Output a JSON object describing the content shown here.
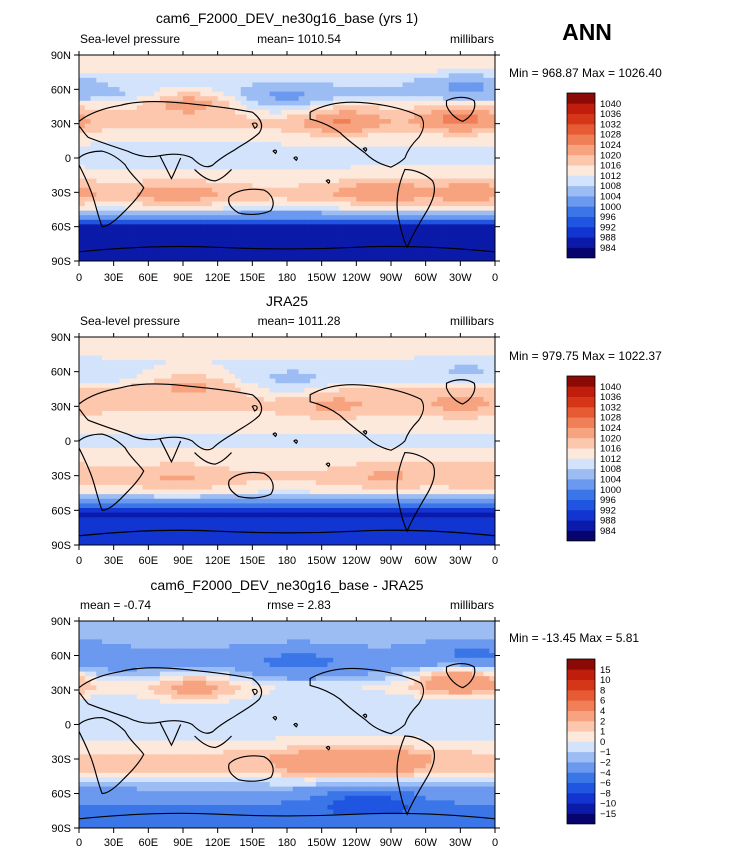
{
  "season": "ANN",
  "colors": {
    "frame": "#000000",
    "text": "#000000"
  },
  "chart_data": [
    {
      "type": "contour-map",
      "title": "cam6_F2000_DEV_ne30g16_base (yrs 1)",
      "left_label": "Sea-level pressure",
      "center_label": "mean= 1010.54",
      "right_label": "millibars",
      "minmax": "Min = 968.87  Max = 1026.40",
      "xlim": [
        0,
        360
      ],
      "ylim": [
        -90,
        90
      ],
      "x_ticks": [
        "0",
        "30E",
        "60E",
        "90E",
        "120E",
        "150E",
        "180",
        "150W",
        "120W",
        "90W",
        "60W",
        "30W",
        "0"
      ],
      "y_ticks": [
        "90N",
        "60N",
        "30N",
        "0",
        "30S",
        "60S",
        "90S"
      ],
      "levels": [
        984,
        988,
        992,
        996,
        1000,
        1004,
        1008,
        1012,
        1016,
        1020,
        1024,
        1028,
        1032,
        1036,
        1040
      ],
      "level_labels": [
        "984",
        "988",
        "992",
        "996",
        "1000",
        "1004",
        "1008",
        "1012",
        "1016",
        "1020",
        "1024",
        "1028",
        "1032",
        "1036",
        "1040"
      ],
      "colorbar_colors": [
        "#08046e",
        "#0b1aa8",
        "#1234d0",
        "#1f55e0",
        "#3a76e8",
        "#6a99ef",
        "#9cbcf4",
        "#d2e3fb",
        "#fde8dc",
        "#fcc7ad",
        "#f7a37f",
        "#f07f58",
        "#e65a34",
        "#d63618",
        "#c01d0c",
        "#8c0a05"
      ],
      "pressure_field": {
        "mean": 1010.54,
        "belts": [
          {
            "lat": -90,
            "value": 985
          },
          {
            "lat": -75,
            "value": 988
          },
          {
            "lat": -62,
            "value": 985
          },
          {
            "lat": -50,
            "value": 1002
          },
          {
            "lat": -42,
            "value": 1012
          },
          {
            "lat": -32,
            "value": 1018
          },
          {
            "lat": -15,
            "value": 1013
          },
          {
            "lat": 0,
            "value": 1010
          },
          {
            "lat": 15,
            "value": 1012
          },
          {
            "lat": 32,
            "value": 1017
          },
          {
            "lat": 45,
            "value": 1014
          },
          {
            "lat": 55,
            "value": 1007
          },
          {
            "lat": 65,
            "value": 1009
          },
          {
            "lat": 80,
            "value": 1015
          },
          {
            "lat": 90,
            "value": 1013
          }
        ],
        "cells": [
          {
            "lon": 225,
            "lat": 32,
            "value": 1026
          },
          {
            "lon": 330,
            "lat": 34,
            "value": 1027
          },
          {
            "lon": 260,
            "lat": -30,
            "value": 1024
          },
          {
            "lon": 340,
            "lat": -30,
            "value": 1023
          },
          {
            "lon": 85,
            "lat": -32,
            "value": 1023
          },
          {
            "lon": 180,
            "lat": 52,
            "value": 1002
          },
          {
            "lon": 335,
            "lat": 62,
            "value": 1002
          },
          {
            "lon": 95,
            "lat": 48,
            "value": 1024
          }
        ]
      }
    },
    {
      "type": "contour-map",
      "title": "JRA25",
      "left_label": "Sea-level pressure",
      "center_label": "mean= 1011.28",
      "right_label": "millibars",
      "minmax": "Min = 979.75  Max = 1022.37",
      "xlim": [
        0,
        360
      ],
      "ylim": [
        -90,
        90
      ],
      "x_ticks": [
        "0",
        "30E",
        "60E",
        "90E",
        "120E",
        "150E",
        "180",
        "150W",
        "120W",
        "90W",
        "60W",
        "30W",
        "0"
      ],
      "y_ticks": [
        "90N",
        "60N",
        "30N",
        "0",
        "30S",
        "60S",
        "90S"
      ],
      "levels": [
        984,
        988,
        992,
        996,
        1000,
        1004,
        1008,
        1012,
        1016,
        1020,
        1024,
        1028,
        1032,
        1036,
        1040
      ],
      "level_labels": [
        "984",
        "988",
        "992",
        "996",
        "1000",
        "1004",
        "1008",
        "1012",
        "1016",
        "1020",
        "1024",
        "1028",
        "1032",
        "1036",
        "1040"
      ],
      "colorbar_colors": [
        "#08046e",
        "#0b1aa8",
        "#1234d0",
        "#1f55e0",
        "#3a76e8",
        "#6a99ef",
        "#9cbcf4",
        "#d2e3fb",
        "#fde8dc",
        "#fcc7ad",
        "#f7a37f",
        "#f07f58",
        "#e65a34",
        "#d63618",
        "#c01d0c",
        "#8c0a05"
      ],
      "pressure_field": {
        "mean": 1011.28,
        "belts": [
          {
            "lat": -90,
            "value": 990
          },
          {
            "lat": -75,
            "value": 992
          },
          {
            "lat": -63,
            "value": 986
          },
          {
            "lat": -52,
            "value": 1002
          },
          {
            "lat": -42,
            "value": 1013
          },
          {
            "lat": -32,
            "value": 1017
          },
          {
            "lat": -15,
            "value": 1013
          },
          {
            "lat": 0,
            "value": 1011
          },
          {
            "lat": 15,
            "value": 1013
          },
          {
            "lat": 32,
            "value": 1017
          },
          {
            "lat": 45,
            "value": 1016
          },
          {
            "lat": 55,
            "value": 1010
          },
          {
            "lat": 65,
            "value": 1011
          },
          {
            "lat": 80,
            "value": 1015
          },
          {
            "lat": 90,
            "value": 1013
          }
        ],
        "cells": [
          {
            "lon": 220,
            "lat": 32,
            "value": 1022
          },
          {
            "lon": 330,
            "lat": 33,
            "value": 1022
          },
          {
            "lon": 265,
            "lat": -30,
            "value": 1021
          },
          {
            "lon": 345,
            "lat": -30,
            "value": 1020
          },
          {
            "lon": 85,
            "lat": -32,
            "value": 1021
          },
          {
            "lon": 185,
            "lat": 52,
            "value": 1006
          },
          {
            "lon": 335,
            "lat": 62,
            "value": 1007
          },
          {
            "lon": 95,
            "lat": 48,
            "value": 1022
          }
        ]
      }
    },
    {
      "type": "contour-map",
      "title": "cam6_F2000_DEV_ne30g16_base - JRA25",
      "left_label": "mean =   -0.74",
      "center_label": "rmse =    2.83",
      "right_label": "millibars",
      "minmax": "Min = -13.45  Max =    5.81",
      "xlim": [
        0,
        360
      ],
      "ylim": [
        -90,
        90
      ],
      "x_ticks": [
        "0",
        "30E",
        "60E",
        "90E",
        "120E",
        "150E",
        "180",
        "150W",
        "120W",
        "90W",
        "60W",
        "30W",
        "0"
      ],
      "y_ticks": [
        "90N",
        "60N",
        "30N",
        "0",
        "30S",
        "60S",
        "90S"
      ],
      "levels": [
        -15,
        -10,
        -8,
        -6,
        -4,
        -2,
        -1,
        0,
        1,
        2,
        4,
        6,
        8,
        10,
        15
      ],
      "level_labels": [
        "-15",
        "-10",
        "-8",
        "-6",
        "-4",
        "-2",
        "-1",
        "0",
        "1",
        "2",
        "4",
        "6",
        "8",
        "10",
        "15"
      ],
      "colorbar_colors": [
        "#08046e",
        "#0b1aa8",
        "#1234d0",
        "#1f55e0",
        "#3a76e8",
        "#6a99ef",
        "#9cbcf4",
        "#d2e3fb",
        "#fde8dc",
        "#fcc7ad",
        "#f7a37f",
        "#f07f58",
        "#e65a34",
        "#d63618",
        "#c01d0c",
        "#8c0a05"
      ],
      "pressure_field": {
        "mean": -0.74,
        "belts": [
          {
            "lat": -90,
            "value": -4
          },
          {
            "lat": -75,
            "value": -5
          },
          {
            "lat": -62,
            "value": -3
          },
          {
            "lat": -50,
            "value": -1
          },
          {
            "lat": -40,
            "value": 1
          },
          {
            "lat": -30,
            "value": 1.5
          },
          {
            "lat": -15,
            "value": 0
          },
          {
            "lat": 0,
            "value": -1
          },
          {
            "lat": 15,
            "value": -1
          },
          {
            "lat": 32,
            "value": 0
          },
          {
            "lat": 45,
            "value": -2
          },
          {
            "lat": 55,
            "value": -3
          },
          {
            "lat": 65,
            "value": -2
          },
          {
            "lat": 80,
            "value": -1
          },
          {
            "lat": 90,
            "value": -1
          }
        ],
        "cells": [
          {
            "lon": 330,
            "lat": 38,
            "value": 5
          },
          {
            "lon": 260,
            "lat": -33,
            "value": 4
          },
          {
            "lon": 200,
            "lat": -33,
            "value": 3
          },
          {
            "lon": 190,
            "lat": 55,
            "value": -5
          },
          {
            "lon": 340,
            "lat": 60,
            "value": -5
          },
          {
            "lon": 250,
            "lat": -68,
            "value": -8
          },
          {
            "lon": 100,
            "lat": 32,
            "value": 3
          }
        ]
      }
    }
  ]
}
